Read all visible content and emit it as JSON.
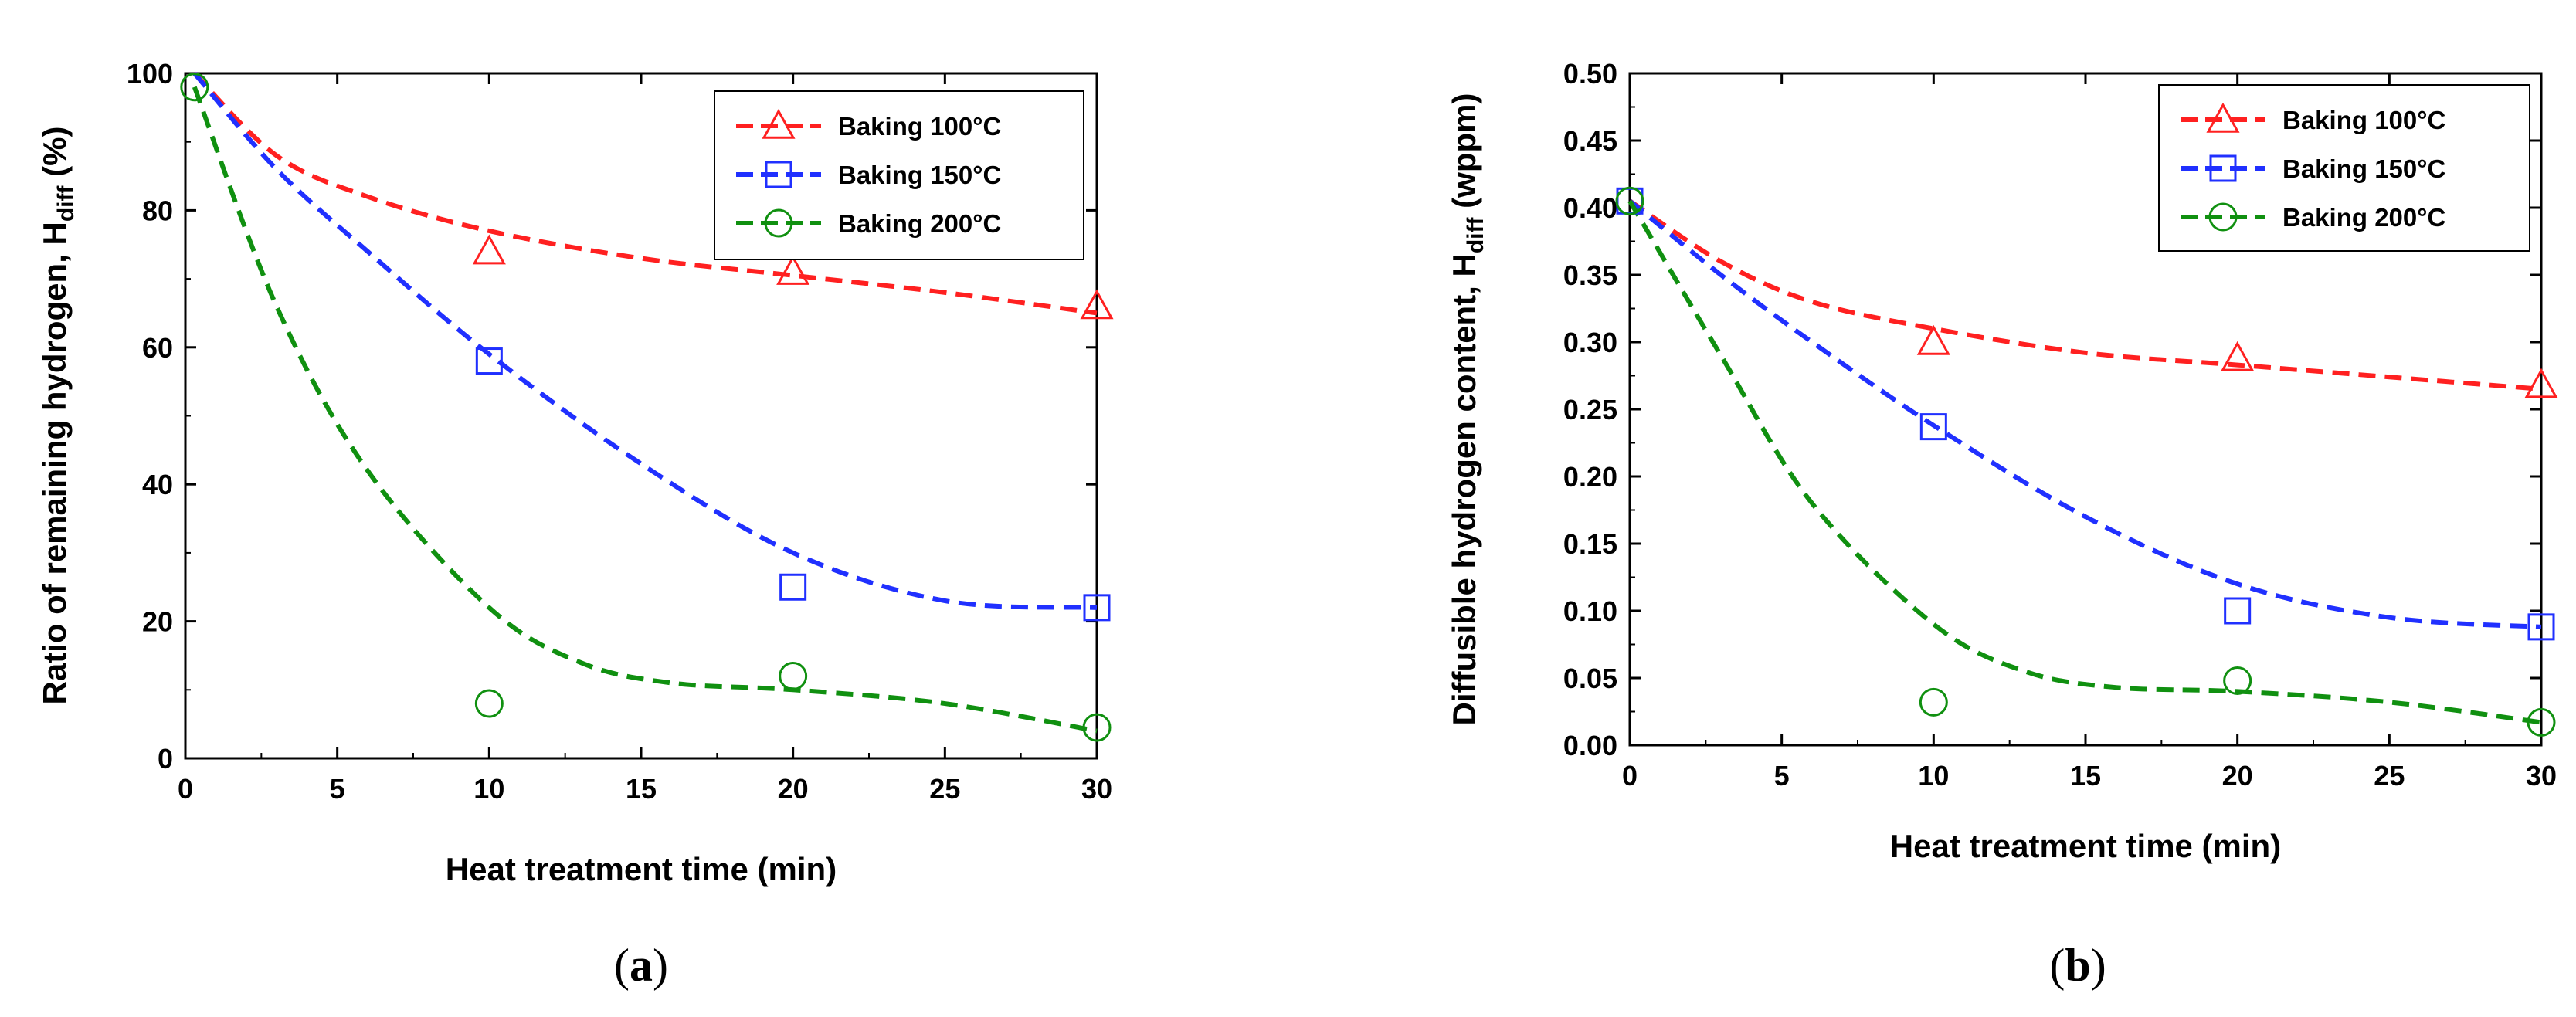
{
  "chart_data": [
    {
      "type": "scatter",
      "panel": "a",
      "caption_open": "(",
      "caption_letter": "a",
      "caption_close": ")",
      "xlabel": "Heat treatment time (min)",
      "ylabel_main": "Ratio of remaining hydrogen, H",
      "ylabel_sub": "diff",
      "ylabel_tail": " (%)",
      "xlim": [
        0,
        30
      ],
      "ylim": [
        0,
        100
      ],
      "xticks": [
        0,
        5,
        10,
        15,
        20,
        25,
        30
      ],
      "yticks": [
        0,
        20,
        40,
        60,
        80,
        100
      ],
      "ytick_labels": [
        "0",
        "20",
        "40",
        "60",
        "80",
        "100"
      ],
      "legend_position": "top-right",
      "series": [
        {
          "name": "Baking 100°C",
          "color": "#ff2020",
          "marker": "triangle",
          "x": [
            10,
            20,
            30
          ],
          "y": [
            74,
            71,
            66
          ],
          "fit": [
            [
              0.3,
              100
            ],
            [
              3,
              88
            ],
            [
              6,
              82
            ],
            [
              10,
              77
            ],
            [
              15,
              73
            ],
            [
              20,
              70.5
            ],
            [
              25,
              68
            ],
            [
              30,
              65
            ]
          ]
        },
        {
          "name": "Baking 150°C",
          "color": "#2030ff",
          "marker": "square",
          "x": [
            10,
            20,
            30
          ],
          "y": [
            58,
            25,
            22
          ],
          "fit": [
            [
              0.3,
              100
            ],
            [
              3,
              86
            ],
            [
              6,
              74
            ],
            [
              10,
              59
            ],
            [
              15,
              43
            ],
            [
              20,
              30
            ],
            [
              25,
              23
            ],
            [
              30,
              22
            ]
          ]
        },
        {
          "name": "Baking 200°C",
          "color": "#109010",
          "marker": "circle",
          "x": [
            0.3,
            10,
            20,
            30
          ],
          "y": [
            98,
            8,
            12,
            4.5
          ],
          "fit": [
            [
              0.3,
              98
            ],
            [
              3,
              66
            ],
            [
              6,
              42
            ],
            [
              10,
              22
            ],
            [
              13,
              14
            ],
            [
              16,
              11
            ],
            [
              20,
              10
            ],
            [
              25,
              8
            ],
            [
              30,
              4
            ]
          ]
        }
      ]
    },
    {
      "type": "scatter",
      "panel": "b",
      "caption_open": "(",
      "caption_letter": "b",
      "caption_close": ")",
      "xlabel": "Heat treatment time (min)",
      "ylabel_main": "Diffusible hydrogen content, H",
      "ylabel_sub": "diff",
      "ylabel_tail": " (wppm)",
      "xlim": [
        0,
        30
      ],
      "ylim": [
        0,
        0.5
      ],
      "xticks": [
        0,
        5,
        10,
        15,
        20,
        25,
        30
      ],
      "yticks": [
        0,
        0.05,
        0.1,
        0.15,
        0.2,
        0.25,
        0.3,
        0.35,
        0.4,
        0.45,
        0.5
      ],
      "ytick_labels": [
        "0.00",
        "0.05",
        "0.10",
        "0.15",
        "0.20",
        "0.25",
        "0.30",
        "0.35",
        "0.40",
        "0.45",
        "0.50"
      ],
      "legend_position": "top-right",
      "series": [
        {
          "name": "Baking 100°C",
          "color": "#ff2020",
          "marker": "triangle",
          "x": [
            10,
            20,
            30
          ],
          "y": [
            0.3,
            0.288,
            0.268
          ],
          "fit": [
            [
              0,
              0.405
            ],
            [
              3,
              0.36
            ],
            [
              6,
              0.33
            ],
            [
              10,
              0.31
            ],
            [
              15,
              0.292
            ],
            [
              20,
              0.283
            ],
            [
              25,
              0.274
            ],
            [
              30,
              0.265
            ]
          ]
        },
        {
          "name": "Baking 150°C",
          "color": "#2030ff",
          "marker": "square",
          "x": [
            0,
            10,
            20,
            30
          ],
          "y": [
            0.405,
            0.237,
            0.1,
            0.088
          ],
          "fit": [
            [
              0,
              0.405
            ],
            [
              3,
              0.35
            ],
            [
              6,
              0.3
            ],
            [
              10,
              0.238
            ],
            [
              15,
              0.17
            ],
            [
              20,
              0.12
            ],
            [
              25,
              0.095
            ],
            [
              30,
              0.088
            ]
          ]
        },
        {
          "name": "Baking 200°C",
          "color": "#109010",
          "marker": "circle",
          "x": [
            0,
            10,
            20,
            30
          ],
          "y": [
            0.405,
            0.032,
            0.048,
            0.017
          ],
          "fit": [
            [
              0,
              0.405
            ],
            [
              3,
              0.29
            ],
            [
              6,
              0.18
            ],
            [
              10,
              0.09
            ],
            [
              13,
              0.055
            ],
            [
              16,
              0.043
            ],
            [
              20,
              0.04
            ],
            [
              25,
              0.032
            ],
            [
              30,
              0.017
            ]
          ]
        }
      ]
    }
  ]
}
